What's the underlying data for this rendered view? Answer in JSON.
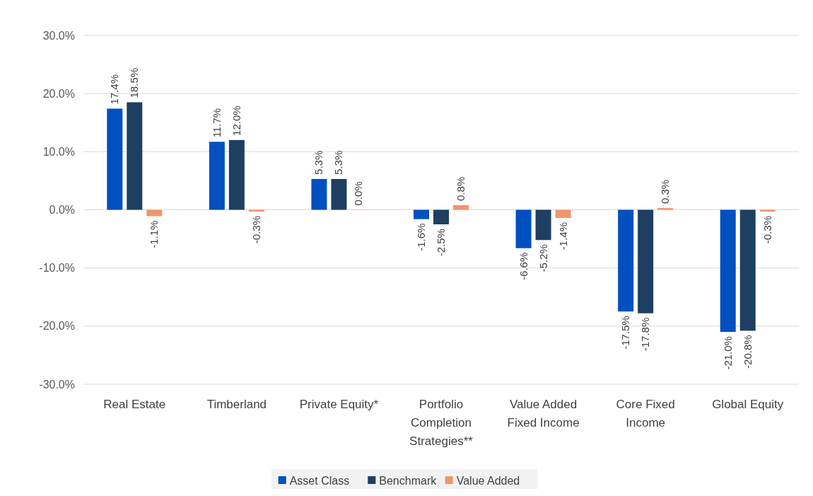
{
  "chart_data": {
    "type": "bar",
    "categories": [
      "Real Estate",
      "Timberland",
      "Private Equity*",
      "Portfolio Completion Strategies**",
      "Value Added Fixed Income",
      "Core Fixed Income",
      "Global Equity"
    ],
    "series": [
      {
        "name": "Asset Class",
        "color": "#0050c0",
        "values": [
          17.4,
          11.7,
          5.3,
          -1.6,
          -6.6,
          -17.5,
          -21.0
        ],
        "value_labels": [
          "17.4%",
          "11.7%",
          "5.3%",
          "-1.6%",
          "-6.6%",
          "-17.5%",
          "-21.0%"
        ]
      },
      {
        "name": "Benchmark",
        "color": "#1e3f61",
        "values": [
          18.5,
          12.0,
          5.3,
          -2.5,
          -5.2,
          -17.8,
          -20.8
        ],
        "value_labels": [
          "18.5%",
          "12.0%",
          "5.3%",
          "-2.5%",
          "-5.2%",
          "-17.8%",
          "-20.8%"
        ]
      },
      {
        "name": "Value Added",
        "color": "#f0956a",
        "values": [
          -1.1,
          -0.3,
          0.0,
          0.8,
          -1.4,
          0.3,
          -0.3
        ],
        "value_labels": [
          "-1.1%",
          "-0.3%",
          "0.0%",
          "0.8%",
          "-1.4%",
          "0.3%",
          "-0.3%"
        ]
      }
    ],
    "ylim": [
      -30,
      30
    ],
    "yticks": [
      {
        "value": -30,
        "label": "-30.0%"
      },
      {
        "value": -20,
        "label": "-20.0%"
      },
      {
        "value": -10,
        "label": "-10.0%"
      },
      {
        "value": 0,
        "label": "0.0%"
      },
      {
        "value": 10,
        "label": "10.0%"
      },
      {
        "value": 20,
        "label": "20.0%"
      },
      {
        "value": 30,
        "label": "30.0%"
      }
    ],
    "grid": "y",
    "legend": "bottom"
  }
}
